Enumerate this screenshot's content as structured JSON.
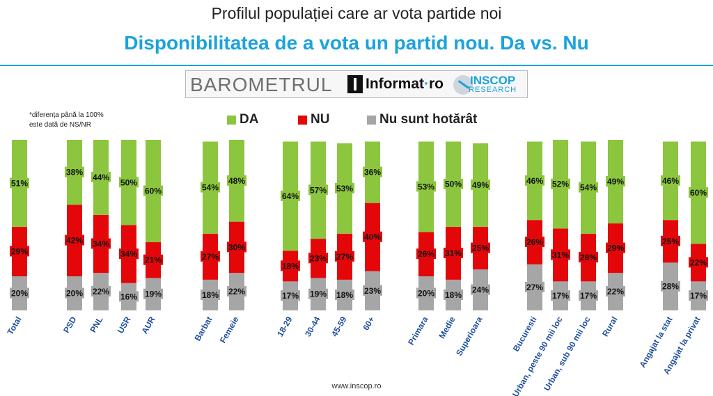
{
  "header": {
    "title": "Profilul populației care ar vota partide noi",
    "subtitle": "Disponibilitatea de a vota un partid nou. Da vs. Nu"
  },
  "logo": {
    "barometer": "BAROMETRUL",
    "informat": "Informat",
    "informat_suffix": "ro",
    "inscop": "INSCOP",
    "research": "RESEARCH"
  },
  "note": {
    "line1": "*diferența până la 100%",
    "line2": "este dată de NS/NR"
  },
  "legend": {
    "da": "DA",
    "nu": "NU",
    "undecided": "Nu sunt hotărât"
  },
  "colors": {
    "da": "#8cc63f",
    "nu": "#e3070a",
    "undecided": "#a6a6a6"
  },
  "footer": "www.inscop.ro",
  "chart_data": {
    "type": "bar",
    "stacked": true,
    "title": "Disponibilitatea de a vota un partid nou. Da vs. Nu",
    "xlabel": "",
    "ylabel": "",
    "ylim": [
      0,
      100
    ],
    "categories": [
      "Total",
      "PSD",
      "PNL",
      "USR",
      "AUR",
      "Barbat",
      "Femeie",
      "18-29",
      "30-44",
      "45-59",
      "60+",
      "Primara",
      "Medie",
      "Superioara",
      "Bucuresti",
      "Urban, peste 90 mii loc",
      "Urban, sub 90 mii loc",
      "Rural",
      "Angajat la stat",
      "Angajat la privat"
    ],
    "groups": [
      [
        "Total"
      ],
      [
        "PSD",
        "PNL",
        "USR",
        "AUR"
      ],
      [
        "Barbat",
        "Femeie"
      ],
      [
        "18-29",
        "30-44",
        "45-59",
        "60+"
      ],
      [
        "Primara",
        "Medie",
        "Superioara"
      ],
      [
        "Bucuresti",
        "Urban, peste 90 mii loc",
        "Urban, sub 90 mii loc",
        "Rural"
      ],
      [
        "Angajat la stat",
        "Angajat la privat"
      ]
    ],
    "series": [
      {
        "name": "Nu sunt hotărât",
        "values": [
          20,
          20,
          22,
          16,
          19,
          18,
          22,
          17,
          19,
          18,
          23,
          20,
          18,
          24,
          27,
          17,
          17,
          22,
          28,
          17
        ]
      },
      {
        "name": "NU",
        "values": [
          29,
          42,
          34,
          34,
          21,
          27,
          30,
          18,
          23,
          27,
          40,
          26,
          31,
          25,
          26,
          31,
          28,
          29,
          25,
          22
        ]
      },
      {
        "name": "DA",
        "values": [
          51,
          38,
          44,
          50,
          60,
          54,
          48,
          64,
          57,
          53,
          36,
          53,
          50,
          49,
          46,
          52,
          54,
          49,
          46,
          60
        ]
      }
    ]
  }
}
